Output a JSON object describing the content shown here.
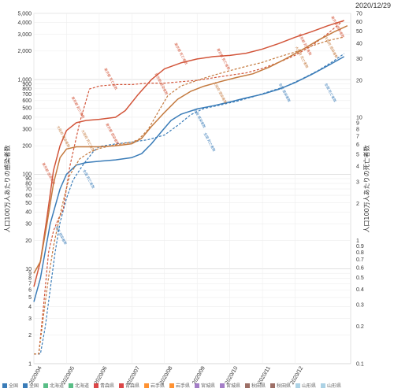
{
  "chart_data": {
    "type": "line",
    "date_label": "2020/12/29",
    "ylabel_left": "人口100万人あたりの感染者数",
    "ylabel_right": "人口100万人あたりの死亡者数",
    "x_ticks": [
      "2020/04",
      "2020/05",
      "2020/06",
      "2020/07",
      "2020/08",
      "2020/09",
      "2020/10",
      "2020/11",
      "2020/12"
    ],
    "x_range": [
      0,
      9.7
    ],
    "y_left_scale": "log",
    "y_left_range": [
      1,
      5000
    ],
    "y_right_scale": "log",
    "y_right_range": [
      0.1,
      70
    ],
    "y_left_ticks": [
      "1",
      "2",
      "3",
      "4",
      "5",
      "6",
      "7",
      "8",
      "9",
      "10",
      "20",
      "30",
      "40",
      "50",
      "60",
      "70",
      "80",
      "90",
      "100",
      "200",
      "300",
      "400",
      "500",
      "600",
      "700",
      "800",
      "900",
      "1,000",
      "2,000",
      "3,000",
      "4,000",
      "5,000"
    ],
    "y_left_tick_values": [
      1,
      2,
      3,
      4,
      5,
      6,
      7,
      8,
      9,
      10,
      20,
      30,
      40,
      50,
      60,
      70,
      80,
      90,
      100,
      200,
      300,
      400,
      500,
      600,
      700,
      800,
      900,
      1000,
      2000,
      3000,
      4000,
      5000
    ],
    "y_right_ticks": [
      "0.1",
      "0.2",
      "0.3",
      "0.4",
      "0.5",
      "0.6",
      "0.7",
      "0.8",
      "0.9",
      "1",
      "2",
      "3",
      "4",
      "5",
      "6",
      "7",
      "8",
      "9",
      "10",
      "20",
      "30",
      "40",
      "50",
      "60",
      "70"
    ],
    "y_right_tick_values": [
      0.1,
      0.2,
      0.3,
      0.4,
      0.5,
      0.6,
      0.7,
      0.8,
      0.9,
      1,
      2,
      3,
      4,
      5,
      6,
      7,
      8,
      9,
      10,
      20,
      30,
      40,
      50,
      60,
      70
    ],
    "grid": true,
    "legend_position": "bottom",
    "legend": [
      {
        "label": "全国",
        "color": "#3a7cb8",
        "active": true
      },
      {
        "label": "全国",
        "color": "#3a7cb8",
        "active": true
      },
      {
        "label": "北海道",
        "color": "#3cb371",
        "active": false
      },
      {
        "label": "北海道",
        "color": "#3cb371",
        "active": false
      },
      {
        "label": "青森県",
        "color": "#d62728",
        "active": false
      },
      {
        "label": "青森県",
        "color": "#d62728",
        "active": false
      },
      {
        "label": "岩手県",
        "color": "#ff7f0e",
        "active": false
      },
      {
        "label": "岩手県",
        "color": "#ff7f0e",
        "active": false
      },
      {
        "label": "宮城県",
        "color": "#9467bd",
        "active": false
      },
      {
        "label": "宮城県",
        "color": "#9467bd",
        "active": false
      },
      {
        "label": "秋田県",
        "color": "#8c564b",
        "active": false
      },
      {
        "label": "秋田県",
        "color": "#8c564b",
        "active": false
      },
      {
        "label": "山形県",
        "color": "#9ecae1",
        "active": false
      },
      {
        "label": "山形県",
        "color": "#9ecae1",
        "active": false
      }
    ],
    "series": [
      {
        "axis": "left",
        "style": "solid",
        "color": "#3a7cb8",
        "points": [
          [
            0,
            4.5
          ],
          [
            0.2,
            8
          ],
          [
            0.5,
            30
          ],
          [
            0.8,
            70
          ],
          [
            1,
            100
          ],
          [
            1.3,
            125
          ],
          [
            1.6,
            133
          ],
          [
            2,
            137
          ],
          [
            2.5,
            142
          ],
          [
            3,
            150
          ],
          [
            3.3,
            165
          ],
          [
            3.6,
            210
          ],
          [
            3.9,
            280
          ],
          [
            4.2,
            370
          ],
          [
            4.5,
            430
          ],
          [
            5,
            490
          ],
          [
            5.5,
            530
          ],
          [
            6,
            580
          ],
          [
            6.5,
            640
          ],
          [
            7,
            700
          ],
          [
            7.5,
            790
          ],
          [
            8,
            930
          ],
          [
            8.5,
            1130
          ],
          [
            9,
            1400
          ],
          [
            9.5,
            1750
          ]
        ]
      },
      {
        "axis": "right",
        "style": "dashed",
        "color": "#3a7cb8",
        "points": [
          [
            0,
            0.12
          ],
          [
            0.2,
            0.12
          ],
          [
            0.35,
            0.2
          ],
          [
            0.5,
            0.4
          ],
          [
            0.65,
            0.8
          ],
          [
            0.8,
            1.4
          ],
          [
            1,
            2.2
          ],
          [
            1.2,
            3.1
          ],
          [
            1.5,
            4.1
          ],
          [
            1.8,
            5.2
          ],
          [
            2,
            5.8
          ],
          [
            2.5,
            6.1
          ],
          [
            3,
            6.3
          ],
          [
            3.5,
            6.6
          ],
          [
            4,
            7.2
          ],
          [
            4.4,
            8.6
          ],
          [
            4.8,
            10.5
          ],
          [
            5.2,
            11.8
          ],
          [
            5.7,
            12.6
          ],
          [
            6.2,
            13.5
          ],
          [
            6.7,
            14.7
          ],
          [
            7.2,
            16.2
          ],
          [
            7.7,
            17.8
          ],
          [
            8.2,
            20.5
          ],
          [
            8.7,
            24
          ],
          [
            9.2,
            29
          ],
          [
            9.5,
            33
          ]
        ]
      },
      {
        "axis": "left",
        "style": "solid",
        "color": "#d2553a",
        "points": [
          [
            0,
            6.5
          ],
          [
            0.2,
            12
          ],
          [
            0.4,
            35
          ],
          [
            0.6,
            110
          ],
          [
            0.8,
            200
          ],
          [
            1,
            290
          ],
          [
            1.3,
            350
          ],
          [
            1.6,
            370
          ],
          [
            2,
            380
          ],
          [
            2.5,
            400
          ],
          [
            2.8,
            470
          ],
          [
            3.2,
            700
          ],
          [
            3.6,
            1000
          ],
          [
            4,
            1300
          ],
          [
            4.5,
            1500
          ],
          [
            5,
            1650
          ],
          [
            5.5,
            1750
          ],
          [
            6,
            1800
          ],
          [
            6.5,
            1900
          ],
          [
            7,
            2100
          ],
          [
            7.5,
            2400
          ],
          [
            8,
            2800
          ],
          [
            8.5,
            3200
          ],
          [
            9,
            3700
          ],
          [
            9.5,
            4200
          ]
        ]
      },
      {
        "axis": "right",
        "style": "dashed",
        "color": "#d2553a",
        "points": [
          [
            0,
            0.12
          ],
          [
            0.15,
            0.12
          ],
          [
            0.3,
            0.3
          ],
          [
            0.45,
            0.8
          ],
          [
            0.6,
            1.2
          ],
          [
            0.75,
            1.5
          ],
          [
            0.9,
            1.8
          ],
          [
            1.1,
            4
          ],
          [
            1.4,
            9
          ],
          [
            1.7,
            17
          ],
          [
            2,
            18
          ],
          [
            2.5,
            18.5
          ],
          [
            3,
            18.5
          ],
          [
            3.5,
            19
          ],
          [
            4,
            19
          ],
          [
            4.5,
            19.5
          ],
          [
            5,
            20
          ],
          [
            5.5,
            21
          ],
          [
            6,
            22
          ],
          [
            6.5,
            23
          ],
          [
            7,
            25
          ],
          [
            7.5,
            28
          ],
          [
            8,
            32
          ],
          [
            8.5,
            38
          ],
          [
            9,
            48
          ],
          [
            9.5,
            62
          ]
        ]
      },
      {
        "axis": "left",
        "style": "solid",
        "color": "#c47a3f",
        "points": [
          [
            0,
            9
          ],
          [
            0.2,
            12
          ],
          [
            0.4,
            30
          ],
          [
            0.6,
            80
          ],
          [
            0.8,
            150
          ],
          [
            1,
            185
          ],
          [
            1.3,
            195
          ],
          [
            1.6,
            195
          ],
          [
            2,
            195
          ],
          [
            2.5,
            200
          ],
          [
            3,
            210
          ],
          [
            3.3,
            240
          ],
          [
            3.6,
            320
          ],
          [
            4,
            450
          ],
          [
            4.4,
            620
          ],
          [
            4.8,
            750
          ],
          [
            5.2,
            850
          ],
          [
            5.7,
            950
          ],
          [
            6.2,
            1050
          ],
          [
            6.7,
            1150
          ],
          [
            7.2,
            1350
          ],
          [
            7.7,
            1650
          ],
          [
            8.2,
            2050
          ],
          [
            8.7,
            2600
          ],
          [
            9.2,
            3200
          ],
          [
            9.6,
            3700
          ]
        ]
      },
      {
        "axis": "right",
        "style": "dashed",
        "color": "#c47a3f",
        "points": [
          [
            0,
            0.12
          ],
          [
            0.15,
            0.12
          ],
          [
            0.3,
            0.25
          ],
          [
            0.45,
            0.5
          ],
          [
            0.6,
            0.9
          ],
          [
            0.75,
            1.4
          ],
          [
            0.9,
            2.1
          ],
          [
            1.1,
            3.4
          ],
          [
            1.4,
            4.6
          ],
          [
            1.7,
            5.2
          ],
          [
            2,
            5.6
          ],
          [
            2.5,
            6
          ],
          [
            3,
            6.3
          ],
          [
            3.2,
            6.6
          ],
          [
            3.5,
            8
          ],
          [
            3.8,
            11
          ],
          [
            4.1,
            15
          ],
          [
            4.5,
            18
          ],
          [
            5,
            20
          ],
          [
            5.5,
            22
          ],
          [
            6,
            24
          ],
          [
            6.5,
            26
          ],
          [
            7,
            28
          ],
          [
            7.5,
            31
          ],
          [
            8,
            34
          ],
          [
            8.5,
            38
          ],
          [
            9,
            42
          ],
          [
            9.5,
            45
          ]
        ]
      }
    ],
    "annotations": [
      {
        "text": "東京都 感染者数",
        "color": "#d2553a",
        "x": 0.25,
        "y": 130,
        "axis": "left"
      },
      {
        "text": "大阪府 感染者数",
        "color": "#c47a3f",
        "x": 0.7,
        "y": 320,
        "axis": "left"
      },
      {
        "text": "全国 感染者数",
        "color": "#3a7cb8",
        "x": 0.65,
        "y": 28,
        "axis": "left"
      },
      {
        "text": "東京都 死亡者数",
        "color": "#d2553a",
        "x": 1.15,
        "y": 650,
        "axis": "left"
      },
      {
        "text": "大阪府 死亡者数",
        "color": "#c47a3f",
        "x": 1.45,
        "y": 290,
        "axis": "left"
      },
      {
        "text": "全国 死亡者数",
        "color": "#3a7cb8",
        "x": 1.5,
        "y": 110,
        "axis": "left"
      },
      {
        "text": "東京都 感染者数",
        "color": "#d2553a",
        "x": 2.2,
        "y": 340,
        "axis": "left"
      },
      {
        "text": "東京都 死亡者数",
        "color": "#d2553a",
        "x": 2.15,
        "y": 1300,
        "axis": "left"
      },
      {
        "text": "東京都 感染者数",
        "color": "#d2553a",
        "x": 3.7,
        "y": 1150,
        "axis": "left"
      },
      {
        "text": "東京都 死亡者数",
        "color": "#d2553a",
        "x": 4.3,
        "y": 2400,
        "axis": "left"
      },
      {
        "text": "東京都 死亡者数",
        "color": "#d2553a",
        "x": 5.6,
        "y": 2100,
        "axis": "left"
      },
      {
        "text": "全国 感染者数",
        "color": "#3a7cb8",
        "x": 4.9,
        "y": 480,
        "axis": "left"
      },
      {
        "text": "全国 死亡者数",
        "color": "#3a7cb8",
        "x": 5.2,
        "y": 270,
        "axis": "left"
      },
      {
        "text": "大阪府 感染者数",
        "color": "#c47a3f",
        "x": 5.5,
        "y": 930,
        "axis": "left"
      },
      {
        "text": "全国 感染者数",
        "color": "#3a7cb8",
        "x": 7.5,
        "y": 900,
        "axis": "left"
      },
      {
        "text": "全国 死亡者数",
        "color": "#3a7cb8",
        "x": 8.9,
        "y": 900,
        "axis": "left"
      },
      {
        "text": "東京都 死亡者数",
        "color": "#d2553a",
        "x": 8.1,
        "y": 3000,
        "axis": "left"
      },
      {
        "text": "東京都 感染者数",
        "color": "#d2553a",
        "x": 9.1,
        "y": 4600,
        "axis": "left"
      },
      {
        "text": "大阪府 感染者数",
        "color": "#c47a3f",
        "x": 8.9,
        "y": 2800,
        "axis": "left"
      },
      {
        "text": "大阪府 死亡者数",
        "color": "#c47a3f",
        "x": 8.0,
        "y": 2200,
        "axis": "left"
      }
    ]
  }
}
